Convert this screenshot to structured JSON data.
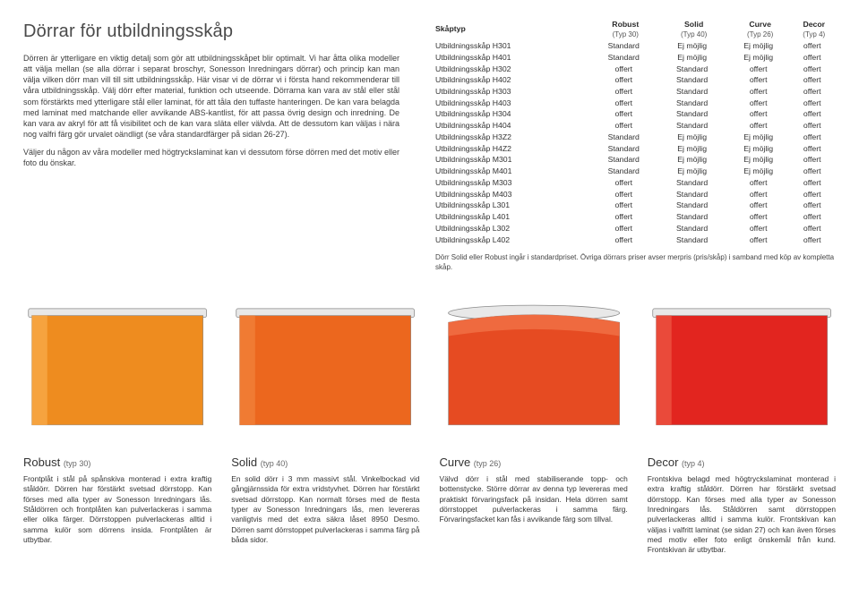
{
  "title": "Dörrar för utbildningsskåp",
  "intro": [
    "Dörren är ytterligare en viktig detalj som gör att utbildningsskåpet blir optimalt. Vi har åtta olika modeller att välja mellan (se alla dörrar i separat broschyr, Sonesson Inredningars dörrar) och princip kan man välja vilken dörr man vill till sitt utbildningsskåp. Här visar vi de dörrar vi i första hand rekommenderar till våra utbildningsskåp. Välj dörr efter material, funktion och utseende. Dörrarna kan vara av stål eller stål som förstärkts med ytterligare stål eller laminat, för att tåla den tuffaste hanteringen. De kan vara belagda med laminat med matchande eller avvikande ABS-kantlist, för att passa övrig design och inredning. De kan vara av akryl för att få visibilitet och de kan vara släta eller välvda. Att de dessutom kan väljas i nära nog valfri färg gör urvalet oändligt (se våra standardfärger på sidan 26-27).",
    "Väljer du någon av våra modeller med högtryckslaminat kan vi dessutom förse dörren med det motiv eller foto du önskar."
  ],
  "table": {
    "headers": [
      {
        "label": "Skåptyp",
        "sub": ""
      },
      {
        "label": "Robust",
        "sub": "(Typ 30)"
      },
      {
        "label": "Solid",
        "sub": "(Typ 40)"
      },
      {
        "label": "Curve",
        "sub": "(Typ 26)"
      },
      {
        "label": "Decor",
        "sub": "(Typ 4)"
      }
    ],
    "rows": [
      [
        "Utbildningsskåp H301",
        "Standard",
        "Ej möjlig",
        "Ej möjlig",
        "offert"
      ],
      [
        "Utbildningsskåp H401",
        "Standard",
        "Ej möjlig",
        "Ej möjlig",
        "offert"
      ],
      [
        "Utbildningsskåp H302",
        "offert",
        "Standard",
        "offert",
        "offert"
      ],
      [
        "Utbildningsskåp H402",
        "offert",
        "Standard",
        "offert",
        "offert"
      ],
      [
        "Utbildningsskåp H303",
        "offert",
        "Standard",
        "offert",
        "offert"
      ],
      [
        "Utbildningsskåp H403",
        "offert",
        "Standard",
        "offert",
        "offert"
      ],
      [
        "Utbildningsskåp H304",
        "offert",
        "Standard",
        "offert",
        "offert"
      ],
      [
        "Utbildningsskåp H404",
        "offert",
        "Standard",
        "offert",
        "offert"
      ],
      [
        "Utbildningsskåp H3Z2",
        "Standard",
        "Ej möjlig",
        "Ej möjlig",
        "offert"
      ],
      [
        "Utbildningsskåp H4Z2",
        "Standard",
        "Ej möjlig",
        "Ej möjlig",
        "offert"
      ],
      [
        "Utbildningsskåp M301",
        "Standard",
        "Ej möjlig",
        "Ej möjlig",
        "offert"
      ],
      [
        "Utbildningsskåp M401",
        "Standard",
        "Ej möjlig",
        "Ej möjlig",
        "offert"
      ],
      [
        "Utbildningsskåp M303",
        "offert",
        "Standard",
        "offert",
        "offert"
      ],
      [
        "Utbildningsskåp M403",
        "offert",
        "Standard",
        "offert",
        "offert"
      ],
      [
        "Utbildningsskåp L301",
        "offert",
        "Standard",
        "offert",
        "offert"
      ],
      [
        "Utbildningsskåp L401",
        "offert",
        "Standard",
        "offert",
        "offert"
      ],
      [
        "Utbildningsskåp L302",
        "offert",
        "Standard",
        "offert",
        "offert"
      ],
      [
        "Utbildningsskåp L402",
        "offert",
        "Standard",
        "offert",
        "offert"
      ]
    ],
    "footnote": "Dörr Solid eller Robust ingår i standardpriset. Övriga dörrars priser avser merpris (pris/skåp) i samband med köp av kompletta skåp."
  },
  "doors": [
    {
      "fill": "#ee8c1f",
      "highlight": "#f6a33f",
      "stroke": "#8a8a8a",
      "shape": "flat"
    },
    {
      "fill": "#ec671e",
      "highlight": "#f07b33",
      "stroke": "#8a8a8a",
      "shape": "flat"
    },
    {
      "fill": "#e64b22",
      "highlight": "#ef6e43",
      "stroke": "#8a8a8a",
      "shape": "curve"
    },
    {
      "fill": "#e2251f",
      "highlight": "#ea4a3a",
      "stroke": "#8a8a8a",
      "shape": "flat"
    }
  ],
  "cols": [
    {
      "title": "Robust",
      "typ": "(typ 30)",
      "text": "Frontplåt i stål på spånskiva monterad i extra kraftig ståldörr. Dörren har förstärkt svetsad dörrstopp. Kan förses med alla typer av Sonesson Inredningars lås. Ståldörren och frontplåten kan pulverlackeras i samma eller olika färger. Dörrstoppen pulverlackeras alltid i samma kulör som dörrens insida. Frontplåten är utbytbar."
    },
    {
      "title": "Solid",
      "typ": "(typ 40)",
      "text": "En solid dörr i 3 mm massivt stål. Vinkelbockad vid gångjärnssida för extra vridstyvhet. Dörren har förstärkt svetsad dörrstopp. Kan normalt förses med de flesta typer av Sonesson Inredningars lås, men levereras vanligtvis med det extra säkra låset 8950 Desmo. Dörren samt dörrstoppet pulverlackeras i samma färg på båda sidor."
    },
    {
      "title": "Curve",
      "typ": "(typ 26)",
      "text": "Välvd dörr i stål med stabiliserande topp- och bottenstycke. Större dörrar av denna typ levereras med praktiskt förvaringsfack på insidan. Hela dörren samt dörrstoppet pulverlackeras i samma färg. Förvaringsfacket kan fås i avvikande färg som tillval."
    },
    {
      "title": "Decor",
      "typ": "(typ 4)",
      "text": "Frontskiva belagd med högtryckslaminat monterad i extra kraftig ståldörr. Dörren har förstärkt svetsad dörrstopp. Kan förses med alla typer av Sonesson Inredningars lås. Ståldörren samt dörrstoppen pulverlackeras alltid i samma kulör. Frontskivan kan väljas i valfritt laminat (se sidan 27) och kan även förses med motiv eller foto enligt önskemål från kund. Frontskivan är utbytbar."
    }
  ]
}
